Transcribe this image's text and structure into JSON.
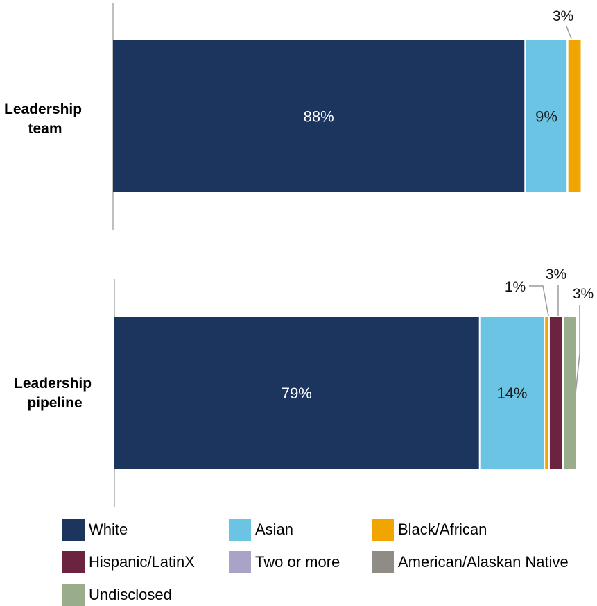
{
  "chart_data": {
    "type": "bar",
    "orientation": "horizontal",
    "stacked": true,
    "categories": [
      "Leadership team",
      "Leadership pipeline"
    ],
    "category_labels": [
      [
        "Leadership",
        "team"
      ],
      [
        "Leadership",
        "pipeline"
      ]
    ],
    "xlim": [
      0,
      100
    ],
    "grid": false,
    "legend_position": "bottom",
    "series": [
      {
        "name": "White",
        "color": "#1b355e",
        "values": [
          88,
          79
        ],
        "labels": [
          "88%",
          "79%"
        ]
      },
      {
        "name": "Asian",
        "color": "#6bc4e3",
        "values": [
          9,
          14
        ],
        "labels": [
          "9%",
          "14%"
        ]
      },
      {
        "name": "Black/African",
        "color": "#f0a500",
        "values": [
          3,
          1
        ],
        "labels": [
          "3%",
          "1%"
        ]
      },
      {
        "name": "Hispanic/LatinX",
        "color": "#6b2340",
        "values": [
          0,
          3
        ],
        "labels": [
          "",
          "3%"
        ]
      },
      {
        "name": "Two or more",
        "color": "#a9a3c8",
        "values": [
          0,
          0
        ],
        "labels": [
          "",
          ""
        ]
      },
      {
        "name": "American/Alaskan Native",
        "color": "#8f8b85",
        "values": [
          0,
          0
        ],
        "labels": [
          "",
          ""
        ]
      },
      {
        "name": "Undisclosed",
        "color": "#9aad8a",
        "values": [
          0,
          3
        ],
        "labels": [
          "",
          "3%"
        ]
      }
    ]
  }
}
